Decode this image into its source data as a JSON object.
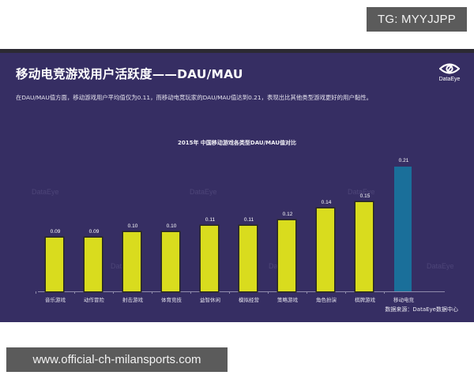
{
  "badge": {
    "text": "TG: MYYJJPP"
  },
  "footer_badge": {
    "text": "www.official-ch-milansports.com"
  },
  "slide": {
    "title": "移动电竞游戏用户活跃度——DAU/MAU",
    "subtitle": "在DAU/MAU值方面，移动游戏用户平均值仅为0.11，而移动电竞玩家的DAU/MAU值达到0.21，表现出比其他类型游戏更好的用户黏性。",
    "logo_text": "DataEye",
    "logo_icon": "eye-icon",
    "source": "数据来源：DataEye数据中心",
    "watermark_text": "DataEye"
  },
  "colors": {
    "background": "#362e63",
    "bar": "#d9dc1e",
    "highlight_bar": "#1a6f9a",
    "text": "#ffffff"
  },
  "chart_data": {
    "type": "bar",
    "title": "2015年 中国移动游戏各类型DAU/MAU值对比",
    "xlabel": "",
    "ylabel": "",
    "ylim": [
      0,
      0.25
    ],
    "grid": false,
    "legend": null,
    "categories": [
      "音乐游戏",
      "动作冒险",
      "射击游戏",
      "体育竞技",
      "益智休闲",
      "模拟经营",
      "策略游戏",
      "角色扮演",
      "棋牌游戏",
      "移动电竞"
    ],
    "values": [
      0.09,
      0.09,
      0.1,
      0.1,
      0.11,
      0.11,
      0.12,
      0.14,
      0.15,
      0.21
    ],
    "value_labels": [
      "0.09",
      "0.09",
      "0.10",
      "0.10",
      "0.11",
      "0.11",
      "0.12",
      "0.14",
      "0.15",
      "0.21"
    ],
    "highlight_index": 9,
    "annotations": [
      "数据来源：DataEye数据中心"
    ]
  }
}
